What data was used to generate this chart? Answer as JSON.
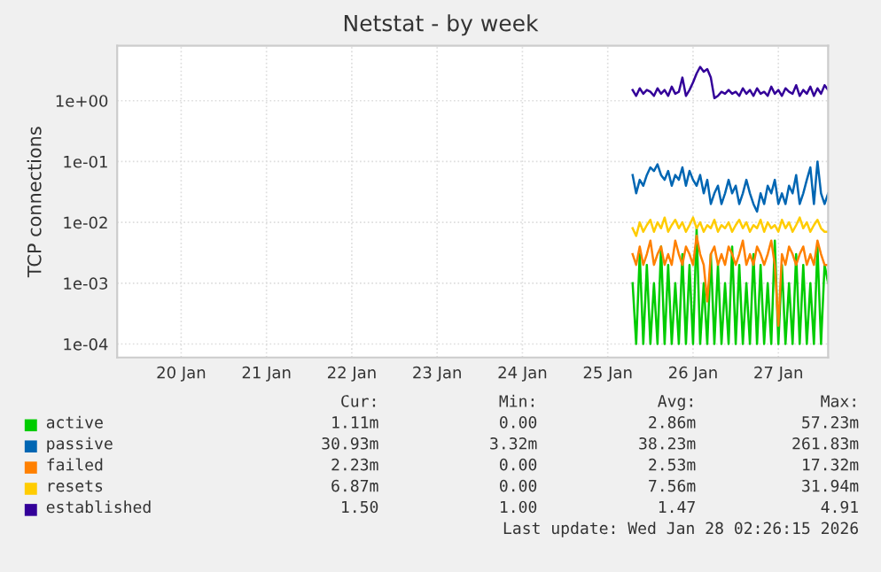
{
  "chart_data": {
    "type": "line",
    "title": "Netstat - by week",
    "ylabel": "TCP connections",
    "x": [
      "2026-01-25T19:00",
      "2026-01-25T20:00",
      "2026-01-25T21:00",
      "2026-01-25T22:00",
      "2026-01-25T23:00",
      "2026-01-26T00:00",
      "2026-01-26T01:00",
      "2026-01-26T02:00",
      "2026-01-26T03:00",
      "2026-01-26T04:00",
      "2026-01-26T05:00",
      "2026-01-26T06:00",
      "2026-01-26T07:00",
      "2026-01-26T08:00",
      "2026-01-26T09:00",
      "2026-01-26T10:00",
      "2026-01-26T11:00",
      "2026-01-26T12:00",
      "2026-01-26T13:00",
      "2026-01-26T14:00",
      "2026-01-26T15:00",
      "2026-01-26T16:00",
      "2026-01-26T17:00",
      "2026-01-26T18:00",
      "2026-01-26T19:00",
      "2026-01-26T20:00",
      "2026-01-26T21:00",
      "2026-01-26T22:00",
      "2026-01-26T23:00",
      "2026-01-27T00:00",
      "2026-01-27T01:00",
      "2026-01-27T02:00",
      "2026-01-27T03:00",
      "2026-01-27T04:00",
      "2026-01-27T05:00",
      "2026-01-27T06:00",
      "2026-01-27T07:00",
      "2026-01-27T08:00",
      "2026-01-27T09:00",
      "2026-01-27T10:00",
      "2026-01-27T11:00",
      "2026-01-27T12:00",
      "2026-01-27T13:00",
      "2026-01-27T14:00",
      "2026-01-27T15:00",
      "2026-01-27T16:00",
      "2026-01-27T17:00",
      "2026-01-27T18:00",
      "2026-01-27T19:00",
      "2026-01-27T20:00",
      "2026-01-27T21:00",
      "2026-01-27T22:00",
      "2026-01-27T23:00",
      "2026-01-28T00:00",
      "2026-01-28T01:00",
      "2026-01-28T02:00"
    ],
    "series": [
      {
        "name": "active",
        "color": "#00cc00",
        "values": [
          0.001,
          0.0001,
          0.003,
          0.0001,
          0.002,
          0.0001,
          0.001,
          0.0001,
          0.004,
          0.0001,
          0.002,
          0.0001,
          0.001,
          0.0001,
          0.003,
          0.0001,
          0.002,
          0.0001,
          0.008,
          0.0001,
          0.001,
          0.0001,
          0.003,
          0.0001,
          0.002,
          0.0001,
          0.001,
          0.0001,
          0.004,
          0.0001,
          0.002,
          0.0001,
          0.001,
          0.0001,
          0.003,
          0.0001,
          0.002,
          0.0001,
          0.001,
          0.0001,
          0.005,
          0.0001,
          0.002,
          0.0001,
          0.001,
          0.0001,
          0.003,
          0.0001,
          0.002,
          0.0001,
          0.001,
          0.0001,
          0.004,
          0.0001,
          0.002,
          0.001
        ]
      },
      {
        "name": "passive",
        "color": "#0066b3",
        "values": [
          0.06,
          0.03,
          0.05,
          0.04,
          0.06,
          0.08,
          0.07,
          0.09,
          0.06,
          0.05,
          0.07,
          0.04,
          0.06,
          0.05,
          0.08,
          0.04,
          0.07,
          0.05,
          0.04,
          0.06,
          0.03,
          0.05,
          0.02,
          0.03,
          0.04,
          0.02,
          0.03,
          0.05,
          0.03,
          0.04,
          0.02,
          0.03,
          0.05,
          0.03,
          0.02,
          0.015,
          0.03,
          0.02,
          0.04,
          0.03,
          0.05,
          0.02,
          0.03,
          0.02,
          0.04,
          0.03,
          0.06,
          0.02,
          0.03,
          0.05,
          0.08,
          0.02,
          0.1,
          0.03,
          0.02,
          0.03
        ]
      },
      {
        "name": "failed",
        "color": "#ff8000",
        "values": [
          0.003,
          0.002,
          0.004,
          0.002,
          0.003,
          0.005,
          0.002,
          0.003,
          0.004,
          0.002,
          0.003,
          0.002,
          0.005,
          0.003,
          0.002,
          0.004,
          0.003,
          0.002,
          0.006,
          0.003,
          0.002,
          0.0005,
          0.003,
          0.004,
          0.002,
          0.003,
          0.002,
          0.004,
          0.003,
          0.002,
          0.003,
          0.005,
          0.002,
          0.003,
          0.002,
          0.004,
          0.003,
          0.002,
          0.003,
          0.005,
          0.002,
          0.0002,
          0.003,
          0.002,
          0.004,
          0.003,
          0.002,
          0.003,
          0.004,
          0.002,
          0.003,
          0.002,
          0.005,
          0.003,
          0.002,
          0.002
        ]
      },
      {
        "name": "resets",
        "color": "#ffcc00",
        "values": [
          0.008,
          0.006,
          0.01,
          0.007,
          0.009,
          0.011,
          0.007,
          0.01,
          0.008,
          0.012,
          0.007,
          0.009,
          0.011,
          0.008,
          0.01,
          0.007,
          0.009,
          0.012,
          0.008,
          0.01,
          0.007,
          0.009,
          0.008,
          0.011,
          0.007,
          0.009,
          0.008,
          0.01,
          0.007,
          0.009,
          0.011,
          0.008,
          0.01,
          0.007,
          0.009,
          0.008,
          0.011,
          0.007,
          0.01,
          0.008,
          0.009,
          0.007,
          0.011,
          0.008,
          0.01,
          0.007,
          0.009,
          0.012,
          0.008,
          0.01,
          0.007,
          0.009,
          0.011,
          0.008,
          0.007,
          0.007
        ]
      },
      {
        "name": "established",
        "color": "#330099",
        "values": [
          1.5,
          1.2,
          1.6,
          1.3,
          1.5,
          1.4,
          1.2,
          1.6,
          1.3,
          1.5,
          1.2,
          1.7,
          1.3,
          1.4,
          2.4,
          1.2,
          1.5,
          2.0,
          2.8,
          3.6,
          3.0,
          3.3,
          2.4,
          1.1,
          1.2,
          1.4,
          1.3,
          1.5,
          1.3,
          1.4,
          1.2,
          1.6,
          1.3,
          1.5,
          1.2,
          1.6,
          1.3,
          1.4,
          1.2,
          1.7,
          1.3,
          1.5,
          1.2,
          1.6,
          1.4,
          1.3,
          1.8,
          1.2,
          1.5,
          1.3,
          1.7,
          1.2,
          1.6,
          1.3,
          1.8,
          1.5
        ]
      }
    ],
    "log": "y",
    "ylim": [
      6e-05,
      8
    ],
    "yticks": [
      {
        "value": 0.0001,
        "label": "1e-04"
      },
      {
        "value": 0.001,
        "label": "1e-03"
      },
      {
        "value": 0.01,
        "label": "1e-02"
      },
      {
        "value": 0.1,
        "label": "1e-01"
      },
      {
        "value": 1,
        "label": "1e+00"
      }
    ],
    "xlim": [
      "2026-01-19T18:00",
      "2026-01-28T02:00"
    ],
    "xticks": [
      {
        "value": "2026-01-20T12:00",
        "label": "20 Jan"
      },
      {
        "value": "2026-01-21T12:00",
        "label": "21 Jan"
      },
      {
        "value": "2026-01-22T12:00",
        "label": "22 Jan"
      },
      {
        "value": "2026-01-23T12:00",
        "label": "23 Jan"
      },
      {
        "value": "2026-01-24T12:00",
        "label": "24 Jan"
      },
      {
        "value": "2026-01-25T12:00",
        "label": "25 Jan"
      },
      {
        "value": "2026-01-26T12:00",
        "label": "26 Jan"
      },
      {
        "value": "2026-01-27T12:00",
        "label": "27 Jan"
      }
    ],
    "grid": true,
    "legend": "bottom left",
    "marker": "none",
    "line_style": "solid",
    "annotations": [
      "Cur:",
      "Min:",
      "Avg:",
      "Max:",
      "1.11m",
      "0.00",
      "2.86m",
      "57.23m",
      "30.93m",
      "3.32m",
      "38.23m",
      "261.83m",
      "2.23m",
      "0.00",
      "2.53m",
      "17.32m",
      "6.87m",
      "0.00",
      "7.56m",
      "31.94m",
      "1.50",
      "1.00",
      "1.47",
      "4.91",
      "Last update: Wed Jan 28 02:26:15 2026"
    ]
  }
}
